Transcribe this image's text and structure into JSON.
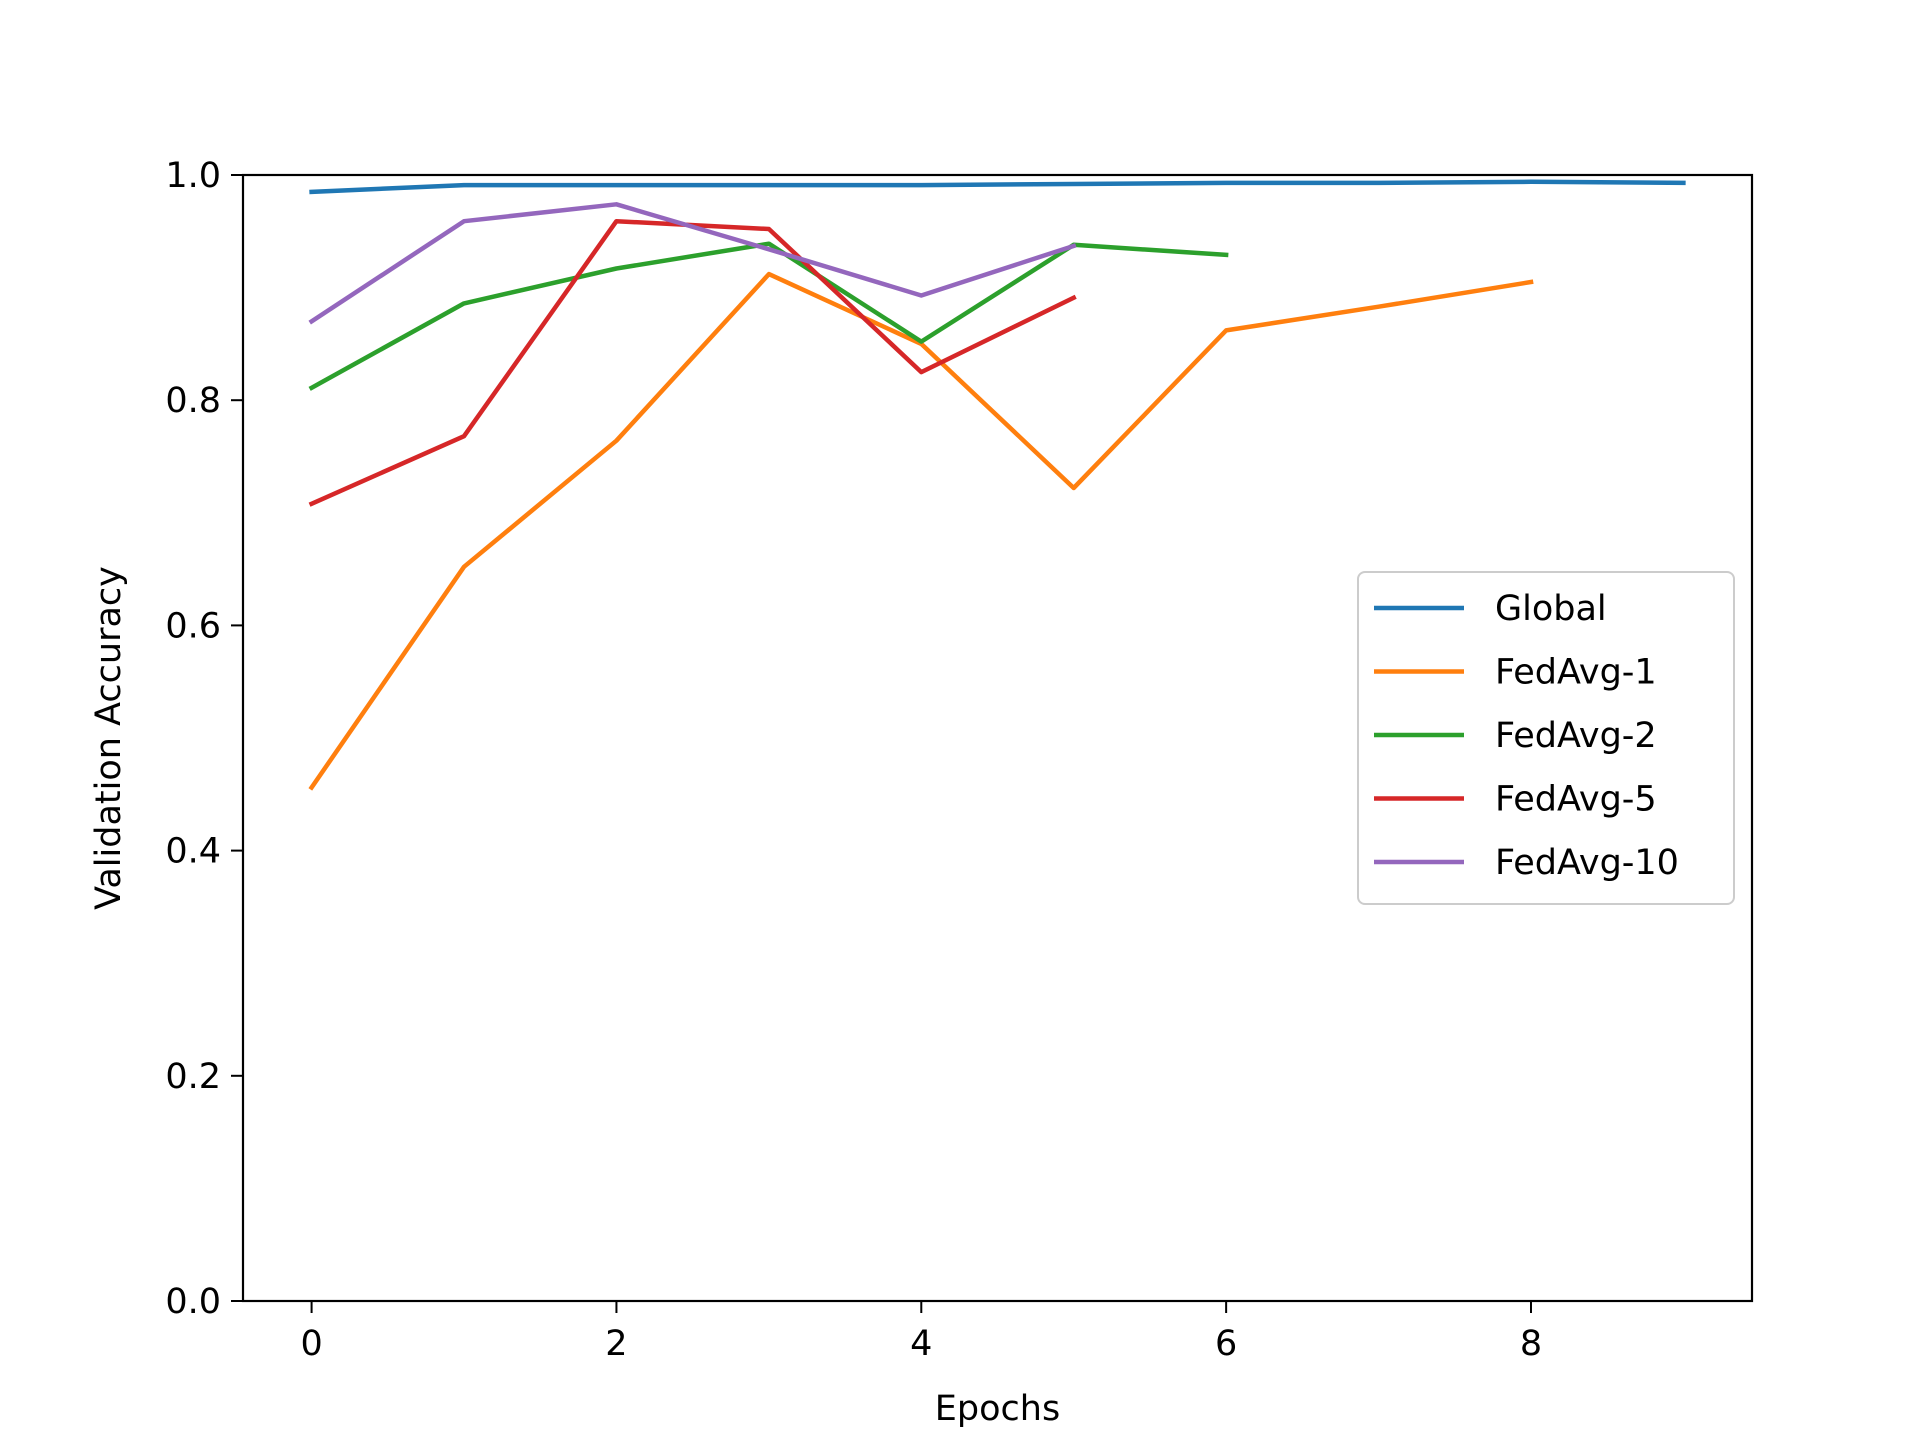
{
  "chart_data": {
    "type": "line",
    "xlabel": "Epochs",
    "ylabel": "Validation Accuracy",
    "xlim": [
      -0.45,
      9.45
    ],
    "ylim": [
      0.0,
      1.0
    ],
    "xticks": [
      0,
      2,
      4,
      6,
      8
    ],
    "yticks": [
      0.0,
      0.2,
      0.4,
      0.6,
      0.8,
      1.0
    ],
    "xtick_labels": [
      "0",
      "2",
      "4",
      "6",
      "8"
    ],
    "ytick_labels": [
      "0.0",
      "0.2",
      "0.4",
      "0.6",
      "0.8",
      "1.0"
    ],
    "grid": false,
    "legend_position": "center-right",
    "series": [
      {
        "name": "Global",
        "color": "#1f77b4",
        "x": [
          0,
          1,
          2,
          3,
          4,
          5,
          6,
          7,
          8,
          9
        ],
        "values": [
          0.985,
          0.991,
          0.991,
          0.991,
          0.991,
          0.992,
          0.993,
          0.993,
          0.994,
          0.993
        ]
      },
      {
        "name": "FedAvg-1",
        "color": "#ff7f0e",
        "x": [
          0,
          1,
          2,
          3,
          4,
          5,
          6,
          7,
          8
        ],
        "values": [
          0.456,
          0.652,
          0.764,
          0.912,
          0.85,
          0.722,
          0.862,
          0.883,
          0.905
        ]
      },
      {
        "name": "FedAvg-2",
        "color": "#2ca02c",
        "x": [
          0,
          1,
          2,
          3,
          4,
          5,
          6
        ],
        "values": [
          0.811,
          0.886,
          0.917,
          0.939,
          0.852,
          0.938,
          0.929
        ]
      },
      {
        "name": "FedAvg-5",
        "color": "#d62728",
        "x": [
          0,
          1,
          2,
          3,
          4,
          5
        ],
        "values": [
          0.708,
          0.768,
          0.959,
          0.952,
          0.825,
          0.891
        ]
      },
      {
        "name": "FedAvg-10",
        "color": "#9467bd",
        "x": [
          0,
          1,
          2,
          3,
          4,
          5
        ],
        "values": [
          0.87,
          0.959,
          0.974,
          0.934,
          0.893,
          0.937
        ]
      }
    ]
  }
}
